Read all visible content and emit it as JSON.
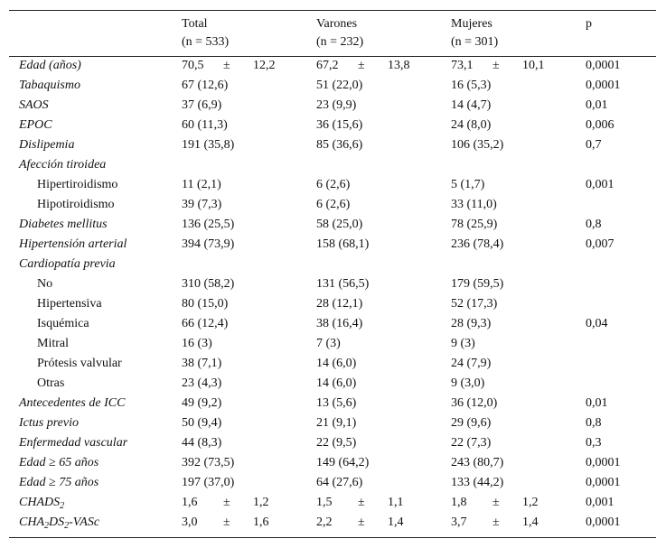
{
  "table": {
    "header": [
      {
        "title": "Total",
        "n": "(n = 533)"
      },
      {
        "title": "Varones",
        "n": "(n = 232)"
      },
      {
        "title": "Mujeres",
        "n": "(n = 301)"
      },
      {
        "title": "p"
      }
    ],
    "rows": [
      {
        "label": "Edad (años)",
        "cells": [
          [
            "70,5",
            "±",
            "12,2"
          ],
          [
            "67,2",
            "±",
            "13,8"
          ],
          [
            "73,1",
            "±",
            "10,1"
          ],
          "0,0001"
        ]
      },
      {
        "label": "Tabaquismo",
        "cells": [
          "67 (12,6)",
          "51 (22,0)",
          "16 (5,3)",
          "0,0001"
        ]
      },
      {
        "label": "SAOS",
        "cells": [
          "37 (6,9)",
          "23 (9,9)",
          "14 (4,7)",
          "0,01"
        ]
      },
      {
        "label": "EPOC",
        "cells": [
          "60 (11,3)",
          "36 (15,6)",
          "24 (8,0)",
          "0,006"
        ]
      },
      {
        "label": "Dislipemia",
        "cells": [
          "191 (35,8)",
          "85 (36,6)",
          "106 (35,2)",
          "0,7"
        ]
      },
      {
        "label": "Afección tiroidea",
        "cells": [
          null,
          null,
          null,
          null
        ]
      },
      {
        "label": "Hipertiroidismo",
        "indent": true,
        "cells": [
          "11 (2,1)",
          "6 (2,6)",
          "5 (1,7)",
          "0,001"
        ]
      },
      {
        "label": "Hipotiroidismo",
        "indent": true,
        "cells": [
          "39 (7,3)",
          "6 (2,6)",
          "33 (11,0)",
          null
        ]
      },
      {
        "label": "Diabetes mellitus",
        "cells": [
          "136 (25,5)",
          "58 (25,0)",
          "78 (25,9)",
          "0,8"
        ]
      },
      {
        "label": "Hipertensión arterial",
        "cells": [
          "394 (73,9)",
          "158 (68,1)",
          "236 (78,4)",
          "0,007"
        ]
      },
      {
        "label": "Cardiopatía previa",
        "cells": [
          null,
          null,
          null,
          null
        ]
      },
      {
        "label": "No",
        "indent": true,
        "cells": [
          "310 (58,2)",
          "131 (56,5)",
          "179 (59,5)",
          null
        ]
      },
      {
        "label": "Hipertensiva",
        "indent": true,
        "cells": [
          "80 (15,0)",
          "28 (12,1)",
          "52 (17,3)",
          null
        ]
      },
      {
        "label": "Isquémica",
        "indent": true,
        "cells": [
          "66 (12,4)",
          "38 (16,4)",
          "28 (9,3)",
          "0,04"
        ]
      },
      {
        "label": "Mitral",
        "indent": true,
        "cells": [
          "16 (3)",
          "7 (3)",
          "9 (3)",
          null
        ]
      },
      {
        "label": "Prótesis valvular",
        "indent": true,
        "cells": [
          "38 (7,1)",
          "14 (6,0)",
          "24 (7,9)",
          null
        ]
      },
      {
        "label": "Otras",
        "indent": true,
        "cells": [
          "23 (4,3)",
          "14 (6,0)",
          "9 (3,0)",
          null
        ]
      },
      {
        "label": "Antecedentes de ICC",
        "cells": [
          "49 (9,2)",
          "13 (5,6)",
          "36 (12,0)",
          "0,01"
        ]
      },
      {
        "label": "Ictus previo",
        "cells": [
          "50 (9,4)",
          "21 (9,1)",
          "29 (9,6)",
          "0,8"
        ]
      },
      {
        "label": "Enfermedad vascular",
        "cells": [
          "44 (8,3)",
          "22 (9,5)",
          "22 (7,3)",
          "0,3"
        ]
      },
      {
        "label": "Edad ≥ 65 años",
        "cells": [
          "392 (73,5)",
          "149 (64,2)",
          "243 (80,7)",
          "0,0001"
        ]
      },
      {
        "label": "Edad ≥ 75 años",
        "cells": [
          "197 (37,0)",
          "64 (27,6)",
          "133 (44,2)",
          "0,0001"
        ]
      },
      {
        "label": [
          {
            "text": "CHADS"
          },
          {
            "text": "2",
            "sub": true
          }
        ],
        "cells": [
          [
            "1,6",
            "±",
            "1,2"
          ],
          [
            "1,5",
            "±",
            "1,1"
          ],
          [
            "1,8",
            "±",
            "1,2"
          ],
          "0,001"
        ]
      },
      {
        "label": [
          {
            "text": "CHA"
          },
          {
            "text": "2",
            "sub": true
          },
          {
            "text": "DS"
          },
          {
            "text": "2",
            "sub": true
          },
          {
            "text": "-VASc"
          }
        ],
        "cells": [
          [
            "3,0",
            "±",
            "1,6"
          ],
          [
            "2,2",
            "±",
            "1,4"
          ],
          [
            "3,7",
            "±",
            "1,4"
          ],
          "0,0001"
        ]
      }
    ]
  }
}
